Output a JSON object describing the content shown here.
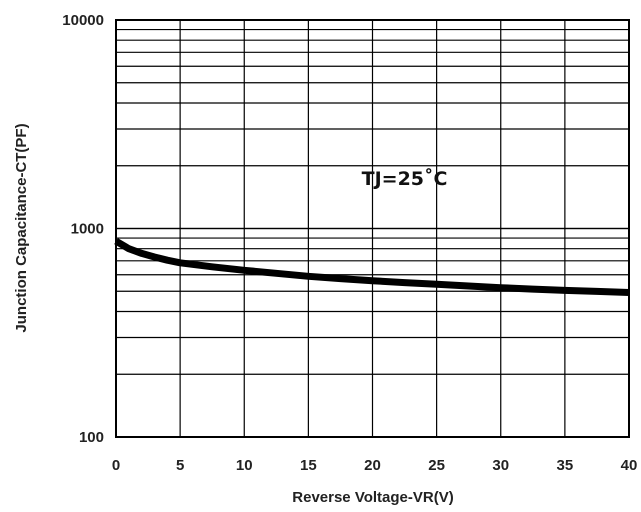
{
  "chart_data": {
    "type": "line",
    "xlabel": "Reverse Voltage-VR(V)",
    "ylabel": "Junction Capacitance-CT(PF)",
    "xlim": [
      0,
      40
    ],
    "ylim": [
      100,
      10000
    ],
    "yscale": "log",
    "grid": true,
    "x_ticks": [
      "0",
      "5",
      "10",
      "15",
      "20",
      "25",
      "30",
      "35",
      "40"
    ],
    "y_ticks": [
      "100",
      "1000",
      "10000"
    ],
    "annotations": [
      {
        "text": "TJ=25˚C",
        "x": 22.5,
        "y": 1750
      }
    ],
    "series": [
      {
        "x": [
          0,
          1,
          2,
          3,
          4,
          5,
          7.5,
          10,
          12.5,
          15,
          17.5,
          20,
          22.5,
          25,
          27.5,
          30,
          32.5,
          35,
          37.5,
          40
        ],
        "y": [
          870,
          800,
          760,
          730,
          705,
          685,
          655,
          630,
          610,
          590,
          575,
          562,
          550,
          540,
          530,
          520,
          512,
          505,
          499,
          493
        ]
      }
    ]
  },
  "colors": {
    "curve": "#000000",
    "grid": "#000000",
    "background": "#ffffff"
  }
}
